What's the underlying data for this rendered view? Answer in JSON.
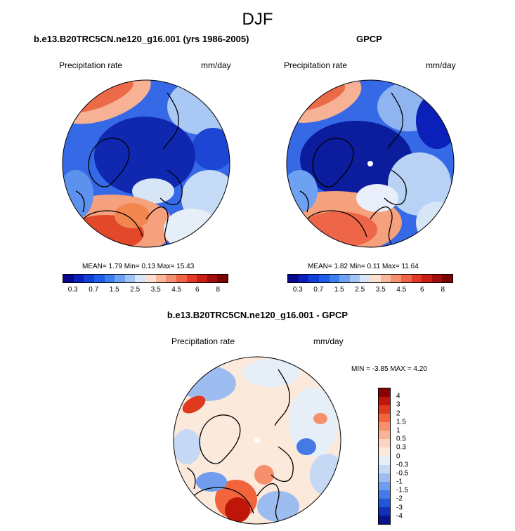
{
  "title": "DJF",
  "panel_left": {
    "title": "b.e13.B20TRC5CN.ne120_g16.001 (yrs 1986-2005)",
    "variable": "Precipitation rate",
    "units": "mm/day",
    "stats": "MEAN=   1.79  Min=   0.13  Max=  15.43"
  },
  "panel_right": {
    "title": "GPCP",
    "variable": "Precipitation rate",
    "units": "mm/day",
    "stats": "MEAN=   1.82  Min=   0.11  Max=  11.64"
  },
  "panel_diff": {
    "title": "b.e13.B20TRC5CN.ne120_g16.001 - GPCP",
    "variable": "Precipitation rate",
    "units": "mm/day",
    "stats": "MIN =  -3.85 MAX =   4.20"
  },
  "precip_colorbar": {
    "colors": [
      "#08088c",
      "#0b20b8",
      "#1040d8",
      "#1f5ce8",
      "#3d7ff0",
      "#6ea1f2",
      "#a2c4f4",
      "#d7e6f7",
      "#fbe0cf",
      "#f8b89b",
      "#f59070",
      "#ef6547",
      "#e23a26",
      "#c71f16",
      "#a00d0b",
      "#7a0404"
    ],
    "labels": [
      "0.3",
      "0.7",
      "1.5",
      "2.5",
      "3.5",
      "4.5",
      "6",
      "8"
    ]
  },
  "diff_colorbar": {
    "colors": [
      "#8b0000",
      "#c0160a",
      "#e03a1e",
      "#f2643c",
      "#f6906c",
      "#f8b396",
      "#fad6c2",
      "#fbe9dc",
      "#e6eef8",
      "#c5d8f4",
      "#9dbdf0",
      "#6f9cec",
      "#4479e6",
      "#2456d8",
      "#1330b8",
      "#08148c"
    ],
    "labels": [
      "4",
      "3",
      "2",
      "1.5",
      "1",
      "0.5",
      "0.3",
      "0",
      "-0.3",
      "-0.5",
      "-1",
      "-1.5",
      "-2",
      "-3",
      "-4"
    ]
  }
}
